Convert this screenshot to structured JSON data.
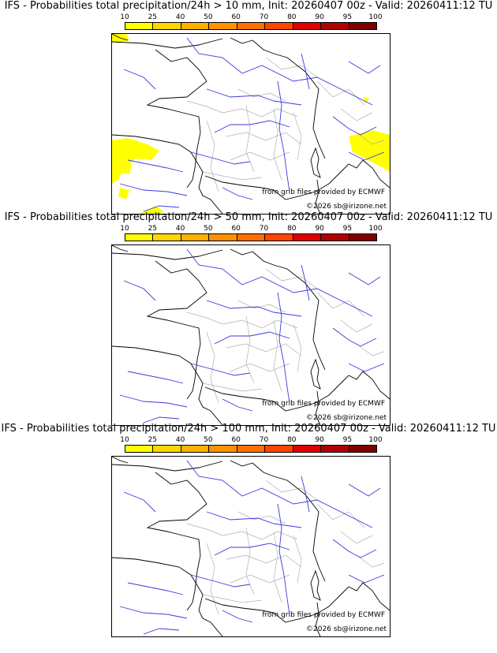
{
  "panels": [
    {
      "title": "IFS - Probabilities total precipitation/24h > 10 mm, Init: 20260407 00z - Valid: 20260411:12 TU",
      "has_precip": true
    },
    {
      "title": "IFS - Probabilities total precipitation/24h > 50 mm, Init: 20260407 00z - Valid: 20260411:12 TU",
      "has_precip": false
    },
    {
      "title": "IFS - Probabilities total precipitation/24h > 100 mm, Init: 20260407 00z - Valid: 20260411:12 TU",
      "has_precip": false
    }
  ],
  "colorbar": {
    "ticks": [
      "10",
      "25",
      "40",
      "50",
      "60",
      "70",
      "80",
      "90",
      "95",
      "100"
    ],
    "colors": [
      "#ffff00",
      "#ffd700",
      "#ffb000",
      "#ff9000",
      "#ff7000",
      "#ff4500",
      "#e00000",
      "#b00000",
      "#800000"
    ]
  },
  "credits": {
    "source": "from grib files provided by ECMWF",
    "copyright": "©2026 sb@irizone.net"
  },
  "map_colors": {
    "coast": "#000000",
    "rivers": "#3a3adf",
    "borders": "#b0b0b0",
    "precip": "#ffff00"
  }
}
